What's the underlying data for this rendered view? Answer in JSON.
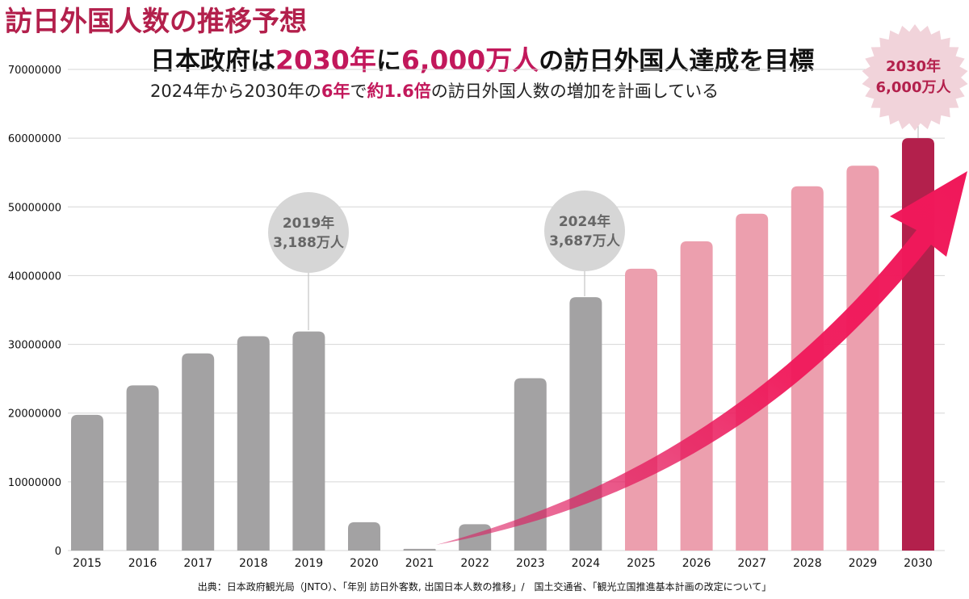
{
  "page_title": "訪日外国人数の推移予想",
  "headline": {
    "part1": "日本政府は",
    "hl1": "2030年",
    "part2": "に",
    "hl2": "6,000万人",
    "part3": "の訪日外国人達成を目標"
  },
  "subheadline": {
    "part1": "2024年から2030年の",
    "hl1": "6年",
    "part2": "で",
    "hl2": "約1.6倍",
    "part3": "の訪日外国人数の増加を計画している"
  },
  "callouts": [
    {
      "year": "2019",
      "line1": "2019年",
      "line2": "3,188万人"
    },
    {
      "year": "2024",
      "line1": "2024年",
      "line2": "3,687万人"
    }
  ],
  "burst": {
    "line1": "2030年",
    "line2": "6,000万人"
  },
  "source": "出典：日本政府観光局（JNTO）、「年別 訪日外客数, 出国日本人数の推移」/　国土交通省、「観光立国推進基本計画の改定について」",
  "colors": {
    "actual": "#a3a2a3",
    "forecast": "#ec9fae",
    "target": "#b3204c",
    "arrow": "#f0185a",
    "accent": "#c2185b"
  },
  "chart_data": {
    "type": "bar",
    "categories": [
      "2015",
      "2016",
      "2017",
      "2018",
      "2019",
      "2020",
      "2021",
      "2022",
      "2023",
      "2024",
      "2025",
      "2026",
      "2027",
      "2028",
      "2029",
      "2030"
    ],
    "values": [
      19740000,
      24040000,
      28690000,
      31190000,
      31880000,
      4120000,
      250000,
      3830000,
      25070000,
      36870000,
      41000000,
      45000000,
      49000000,
      53000000,
      56000000,
      60000000
    ],
    "kinds": [
      "actual",
      "actual",
      "actual",
      "actual",
      "actual",
      "actual",
      "actual",
      "actual",
      "actual",
      "actual",
      "forecast",
      "forecast",
      "forecast",
      "forecast",
      "forecast",
      "target"
    ],
    "yticks": [
      "0",
      "10000000",
      "20000000",
      "30000000",
      "40000000",
      "50000000",
      "60000000",
      "70000000"
    ],
    "ylim": [
      0,
      70000000
    ],
    "grid": true,
    "title": "",
    "xlabel": "",
    "ylabel": ""
  }
}
